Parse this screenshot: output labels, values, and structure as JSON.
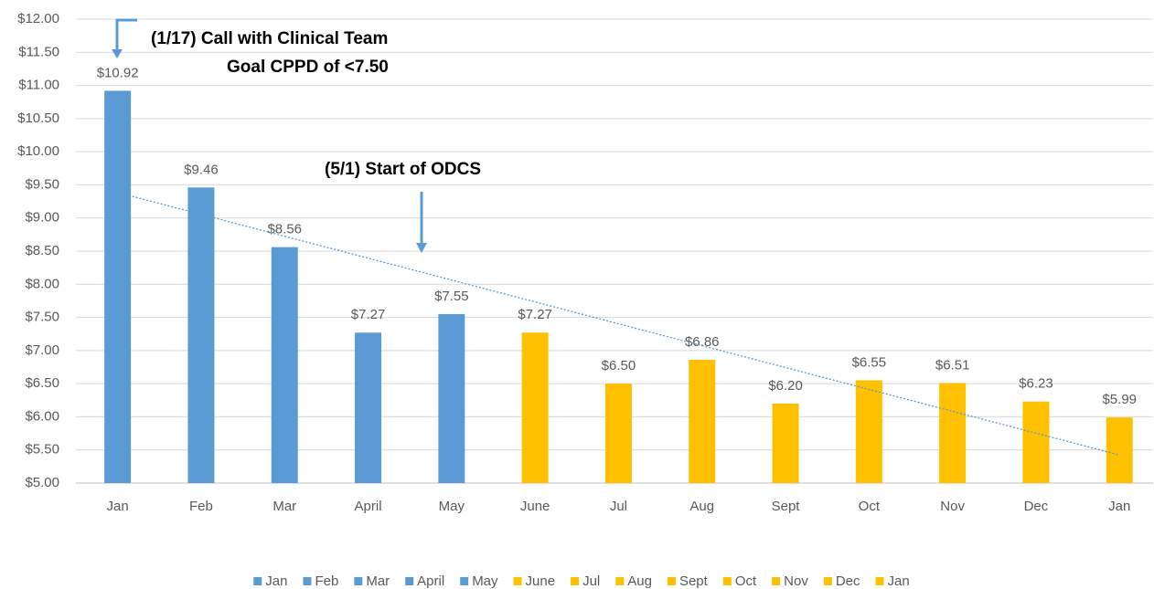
{
  "chart_data": {
    "type": "bar",
    "categories": [
      "Jan",
      "Feb",
      "Mar",
      "April",
      "May",
      "June",
      "Jul",
      "Aug",
      "Sept",
      "Oct",
      "Nov",
      "Dec",
      "Jan"
    ],
    "values": [
      10.92,
      9.46,
      8.56,
      7.27,
      7.55,
      7.27,
      6.5,
      6.86,
      6.2,
      6.55,
      6.51,
      6.23,
      5.99
    ],
    "value_labels": [
      "$10.92",
      "$9.46",
      "$8.56",
      "$7.27",
      "$7.55",
      "$7.27",
      "$6.50",
      "$6.86",
      "$6.20",
      "$6.55",
      "$6.51",
      "$6.23",
      "$5.99"
    ],
    "colors": [
      "#5b9bd5",
      "#5b9bd5",
      "#5b9bd5",
      "#5b9bd5",
      "#5b9bd5",
      "#ffc000",
      "#ffc000",
      "#ffc000",
      "#ffc000",
      "#ffc000",
      "#ffc000",
      "#ffc000",
      "#ffc000"
    ],
    "ylim": [
      5,
      12
    ],
    "yticks": [
      {
        "value": 5,
        "label": "$5.00"
      },
      {
        "value": 5.5,
        "label": "$5.50"
      },
      {
        "value": 6,
        "label": "$6.00"
      },
      {
        "value": 6.5,
        "label": "$6.50"
      },
      {
        "value": 7,
        "label": "$7.00"
      },
      {
        "value": 7.5,
        "label": "$7.50"
      },
      {
        "value": 8,
        "label": "$8.00"
      },
      {
        "value": 8.5,
        "label": "$8.50"
      },
      {
        "value": 9,
        "label": "$9.00"
      },
      {
        "value": 9.5,
        "label": "$9.50"
      },
      {
        "value": 10,
        "label": "$10.00"
      },
      {
        "value": 10.5,
        "label": "$10.50"
      },
      {
        "value": 11,
        "label": "$11.00"
      },
      {
        "value": 11.5,
        "label": "$11.50"
      },
      {
        "value": 12,
        "label": "$12.00"
      }
    ],
    "grid": true,
    "trendline": "linear",
    "trendline_color": "#5b9bd5",
    "legend": "bottom",
    "annotations": [
      "(1/17) Call with Clinical Team",
      "Goal CPPD of <7.50",
      "(5/1) Start of ODCS"
    ]
  }
}
